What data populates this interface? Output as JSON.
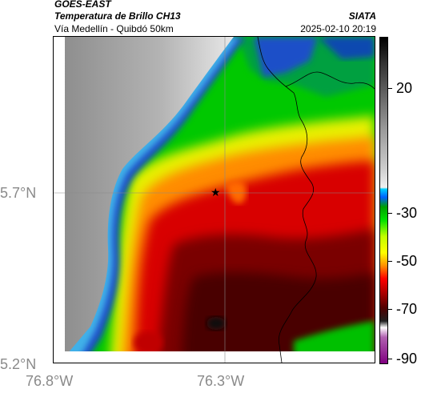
{
  "header": {
    "satellite": "GOES-EAST",
    "product": "Temperatura de Brillo CH13",
    "route": "Vía Medellín - Quibdó 50km",
    "agency": "SIATA",
    "datetime": "2025-02-10 20:19"
  },
  "map": {
    "lat_labels": [
      "5.7°N",
      "5.2°N"
    ],
    "lon_labels": [
      "76.8°W",
      "76.3°W"
    ],
    "marker": "star-marker",
    "colorbar_ticks": [
      "20",
      "-30",
      "-50",
      "-70",
      "-90"
    ],
    "colors": {
      "cold_core": "#3a0000",
      "red": "#d40000",
      "orange": "#ff7a00",
      "yellow": "#ffff00",
      "green": "#00cc00",
      "blue": "#1060d0",
      "gray_land": "#9a9a9a"
    }
  }
}
